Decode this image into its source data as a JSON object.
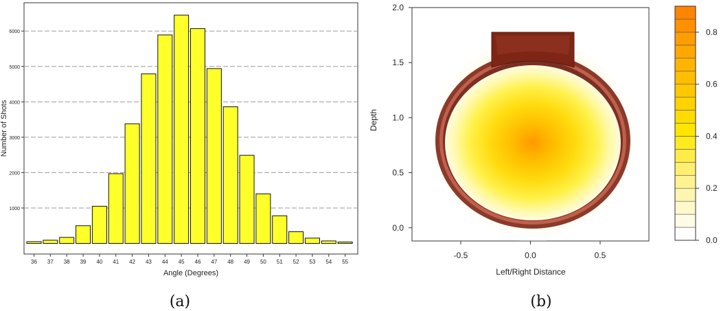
{
  "panel_a": {
    "caption": "(a)",
    "chart_data": {
      "type": "bar",
      "title": "",
      "xlabel": "Angle (Degrees)",
      "ylabel": "Number of Shots",
      "categories": [
        "36",
        "37",
        "38",
        "39",
        "40",
        "41",
        "42",
        "43",
        "44",
        "45",
        "46",
        "47",
        "48",
        "49",
        "50",
        "51",
        "52",
        "53",
        "54",
        "55"
      ],
      "values": [
        50,
        90,
        170,
        500,
        1050,
        1970,
        3380,
        4790,
        5890,
        6450,
        6070,
        4940,
        3860,
        2490,
        1400,
        780,
        330,
        150,
        70,
        40
      ],
      "yticks": [
        1000,
        2000,
        3000,
        4000,
        5000,
        6000
      ],
      "ylim": [
        -300,
        6800
      ],
      "grid": "horizontal-dashed",
      "bar_color": "#ffff2a"
    }
  },
  "panel_b": {
    "caption": "(b)",
    "chart_data": {
      "type": "heatmap",
      "title": "",
      "xlabel": "Left/Right Distance",
      "ylabel": "Depth",
      "xlim": [
        -0.85,
        0.85
      ],
      "ylim": [
        -0.12,
        2.0
      ],
      "xticks": [
        "-0.5",
        "0.0",
        "0.5"
      ],
      "yticks": [
        "0.0",
        "0.5",
        "1.0",
        "1.5",
        "2.0"
      ],
      "peak": {
        "x": 0.0,
        "y": 0.9
      },
      "colorbar": {
        "min": 0.0,
        "max": 0.9,
        "ticks": [
          "0.0",
          "0.2",
          "0.4",
          "0.6",
          "0.8"
        ],
        "levels": 18,
        "colors": [
          "#ffffff",
          "#fffbe6",
          "#fff8cc",
          "#fff5b0",
          "#fff290",
          "#ffef6e",
          "#ffec48",
          "#ffea1e",
          "#ffe600",
          "#ffdc00",
          "#ffd200",
          "#ffc800",
          "#ffbe00",
          "#ffb400",
          "#ffa800",
          "#ff9c00",
          "#ff9000",
          "#ff8400"
        ]
      }
    }
  }
}
